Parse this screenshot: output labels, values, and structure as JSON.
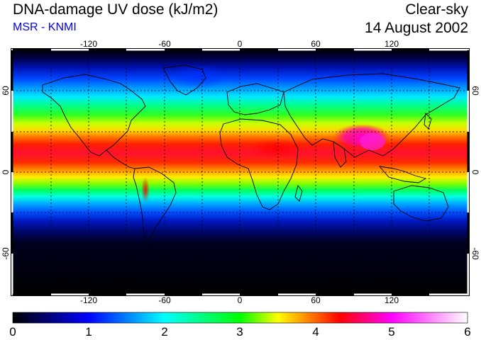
{
  "header": {
    "title": "DNA-damage UV dose (kJ/m2)",
    "subtitle": "MSR - KNMI",
    "condition": "Clear-sky",
    "date": "14 August 2002"
  },
  "map": {
    "projection": "equirectangular",
    "lon_range": [
      -180,
      180
    ],
    "lat_range": [
      -90,
      90
    ],
    "lon_ticks": [
      -120,
      -60,
      0,
      60,
      120
    ],
    "lat_ticks": [
      60,
      0,
      -60
    ],
    "gridlines": "dashed, every 30 degrees"
  },
  "colorbar": {
    "min": 0,
    "max": 6,
    "tick_labels": [
      "0",
      "1",
      "2",
      "3",
      "4",
      "5",
      "6"
    ],
    "colors": [
      "#000000",
      "#0000ff",
      "#00ffff",
      "#00ff00",
      "#ffff00",
      "#ff0000",
      "#ff00ff",
      "#ffffff"
    ]
  }
}
